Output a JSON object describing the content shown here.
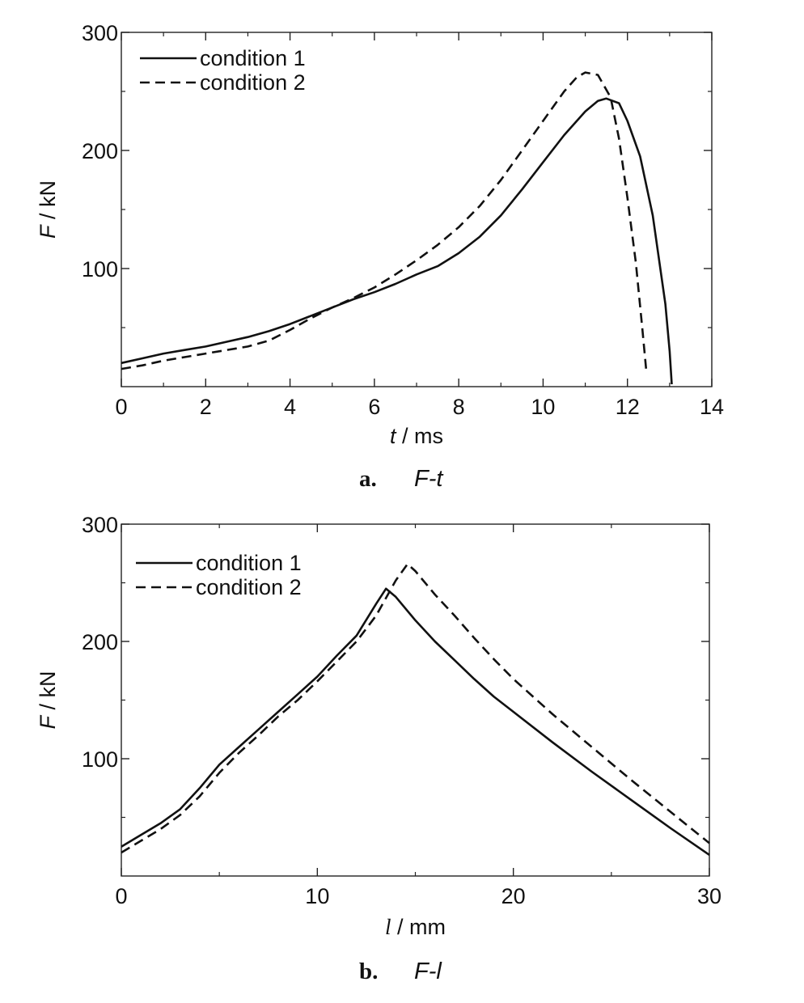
{
  "chart_data": [
    {
      "type": "line",
      "caption_letter": "a.",
      "caption_title": "F-t",
      "xlabel_var": "t",
      "xlabel_unit": " / ms",
      "ylabel_var": "F",
      "ylabel_unit": " / kN",
      "xlim": [
        0,
        14
      ],
      "ylim": [
        0,
        300
      ],
      "xticks": [
        0,
        2,
        4,
        6,
        8,
        10,
        12,
        14
      ],
      "yticks": [
        100,
        200,
        300
      ],
      "grid": false,
      "legend_position": "top-left",
      "series": [
        {
          "name": "condition 1",
          "style": "solid",
          "x": [
            0,
            0.5,
            1,
            1.5,
            2,
            2.5,
            3,
            3.5,
            4,
            4.5,
            5,
            5.5,
            6,
            6.5,
            7,
            7.5,
            8,
            8.5,
            9,
            9.5,
            10,
            10.5,
            11,
            11.3,
            11.5,
            11.8,
            12,
            12.3,
            12.6,
            12.9,
            13.0,
            13.05
          ],
          "y": [
            20,
            24,
            28,
            31,
            34,
            38,
            42,
            47,
            53,
            60,
            67,
            74,
            80,
            87,
            95,
            102,
            113,
            127,
            145,
            167,
            190,
            213,
            233,
            242,
            244,
            240,
            225,
            195,
            145,
            70,
            30,
            2
          ]
        },
        {
          "name": "condition 2",
          "style": "dashed",
          "x": [
            0,
            0.5,
            1,
            1.5,
            2,
            2.5,
            3,
            3.5,
            4,
            4.5,
            5,
            5.5,
            6,
            6.5,
            7,
            7.5,
            8,
            8.5,
            9,
            9.5,
            10,
            10.5,
            10.8,
            11.0,
            11.3,
            11.6,
            11.8,
            12.0,
            12.2,
            12.35,
            12.45
          ],
          "y": [
            15,
            18,
            22,
            25,
            28,
            31,
            34,
            39,
            48,
            58,
            67,
            75,
            84,
            95,
            107,
            120,
            135,
            153,
            175,
            200,
            225,
            250,
            262,
            266,
            264,
            245,
            210,
            160,
            105,
            50,
            12
          ]
        }
      ]
    },
    {
      "type": "line",
      "caption_letter": "b.",
      "caption_title": "F-l",
      "xlabel_var": "l",
      "xlabel_unit": " / mm",
      "ylabel_var": "F",
      "ylabel_unit": " / kN",
      "xlim": [
        0,
        30
      ],
      "ylim": [
        0,
        300
      ],
      "xticks": [
        0,
        10,
        20,
        30
      ],
      "yticks": [
        100,
        200,
        300
      ],
      "grid": false,
      "legend_position": "top-left",
      "series": [
        {
          "name": "condition 1",
          "style": "solid",
          "x": [
            0,
            1,
            2,
            3,
            4,
            5,
            6,
            7,
            8,
            9,
            10,
            11,
            12,
            13,
            13.5,
            14,
            15,
            16,
            17,
            18,
            19,
            20,
            22,
            24,
            26,
            28,
            30
          ],
          "y": [
            25,
            35,
            45,
            57,
            75,
            95,
            110,
            125,
            140,
            155,
            170,
            188,
            205,
            232,
            245,
            238,
            218,
            200,
            184,
            168,
            153,
            140,
            114,
            89,
            65,
            41,
            18
          ]
        },
        {
          "name": "condition 2",
          "style": "dashed",
          "x": [
            0,
            1,
            2,
            3,
            4,
            5,
            6,
            7,
            8,
            9,
            10,
            11,
            12,
            13,
            14,
            14.6,
            15,
            16,
            17,
            18,
            19,
            20,
            22,
            24,
            26,
            28,
            30
          ],
          "y": [
            20,
            30,
            40,
            52,
            68,
            88,
            105,
            120,
            136,
            150,
            166,
            183,
            200,
            222,
            252,
            266,
            260,
            240,
            222,
            203,
            185,
            168,
            138,
            110,
            82,
            55,
            28
          ]
        }
      ]
    }
  ]
}
